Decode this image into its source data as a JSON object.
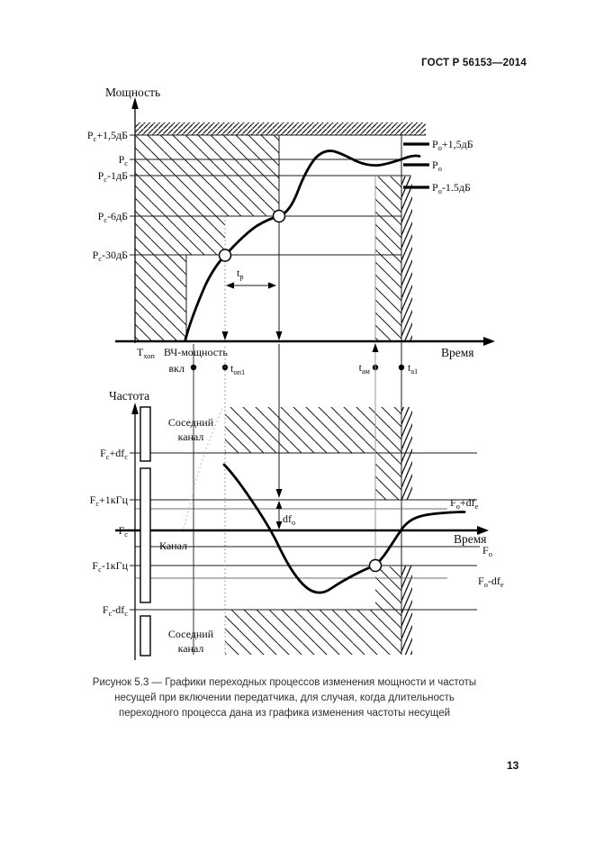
{
  "page": {
    "header": "ГОСТ Р 56153—2014",
    "page_number": "13",
    "caption": {
      "line1": "Рисунок 5.3 — Графики переходных процессов изменения мощности и частоты",
      "line2": "несущей при включении передатчика, для случая, когда длительность",
      "line3": "переходного процесса дана из графика изменения частоты несущей"
    }
  },
  "power_chart": {
    "axis": {
      "y_title": "Мощность",
      "x_title": "Время"
    },
    "left_labels": {
      "p_plus_1_5db": [
        {
          "t": "P"
        },
        {
          "t": "с",
          "sub": true
        },
        {
          "t": "+1,5дБ"
        }
      ],
      "p": [
        {
          "t": "P"
        },
        {
          "t": "с",
          "sub": true
        }
      ],
      "p_minus_1db": [
        {
          "t": "P"
        },
        {
          "t": "с",
          "sub": true
        },
        {
          "t": "-1дБ"
        }
      ],
      "p_minus_6db": [
        {
          "t": "P"
        },
        {
          "t": "с",
          "sub": true
        },
        {
          "t": "-6дБ"
        }
      ],
      "p_minus_30db": [
        {
          "t": "P"
        },
        {
          "t": "с",
          "sub": true
        },
        {
          "t": "-30дБ"
        }
      ]
    },
    "right_labels": {
      "po_plus_1_5db": [
        {
          "t": "P"
        },
        {
          "t": "о",
          "sub": true
        },
        {
          "t": "+1,5дБ"
        }
      ],
      "po": [
        {
          "t": "P"
        },
        {
          "t": "о",
          "sub": true
        }
      ],
      "po_minus_1_5db": [
        {
          "t": "P"
        },
        {
          "t": "о",
          "sub": true
        },
        {
          "t": "-1.5дБ"
        }
      ]
    },
    "annotations": {
      "t_hop": [
        {
          "t": "T"
        },
        {
          "t": "хоп",
          "sub": true
        }
      ],
      "rf_power": "ВЧ-мощность",
      "vkl": "вкл",
      "t_on1": [
        {
          "t": "t"
        },
        {
          "t": "оп1",
          "sub": true
        }
      ],
      "t_am": [
        {
          "t": "t"
        },
        {
          "t": "ам",
          "sub": true
        }
      ],
      "t_a1": [
        {
          "t": "t"
        },
        {
          "t": "а1",
          "sub": true
        }
      ],
      "t_p": [
        {
          "t": "t"
        },
        {
          "t": "р",
          "sub": true
        }
      ]
    }
  },
  "freq_chart": {
    "axis": {
      "y_title": "Частота",
      "x_title": "Время"
    },
    "left_labels": {
      "f_plus_dfc": [
        {
          "t": "F"
        },
        {
          "t": "с",
          "sub": true
        },
        {
          "t": "+df"
        },
        {
          "t": "с",
          "sub": true
        }
      ],
      "f_plus_1khz": [
        {
          "t": "F"
        },
        {
          "t": "с",
          "sub": true
        },
        {
          "t": "+1кГц"
        }
      ],
      "f": [
        {
          "t": "F"
        },
        {
          "t": "с",
          "sub": true
        }
      ],
      "f_minus_1khz": [
        {
          "t": "F"
        },
        {
          "t": "с",
          "sub": true
        },
        {
          "t": "-1кГц"
        }
      ],
      "f_minus_dfc": [
        {
          "t": "F"
        },
        {
          "t": "с",
          "sub": true
        },
        {
          "t": "-df"
        },
        {
          "t": "с",
          "sub": true
        }
      ]
    },
    "right_labels": {
      "fo_plus_dfe": [
        {
          "t": "F"
        },
        {
          "t": "о",
          "sub": true
        },
        {
          "t": "+df"
        },
        {
          "t": "е",
          "sub": true
        }
      ],
      "fo": [
        {
          "t": "F"
        },
        {
          "t": "о",
          "sub": true
        }
      ],
      "fo_minus_dfe": [
        {
          "t": "F"
        },
        {
          "t": "о",
          "sub": true
        },
        {
          "t": "-df"
        },
        {
          "t": "е",
          "sub": true
        }
      ]
    },
    "annotations": {
      "adjacent_channel_top": {
        "line1": "Соседний",
        "line2": "канал"
      },
      "channel": "Канал",
      "adjacent_channel_bottom": {
        "line1": "Соседний",
        "line2": "канал"
      },
      "df_o": [
        {
          "t": "df"
        },
        {
          "t": "о",
          "sub": true
        }
      ]
    }
  },
  "colors": {
    "ink": "#000000",
    "gray_line": "#9a9a9a",
    "hatch_gray": "#8c8c8c",
    "background": "#ffffff"
  }
}
